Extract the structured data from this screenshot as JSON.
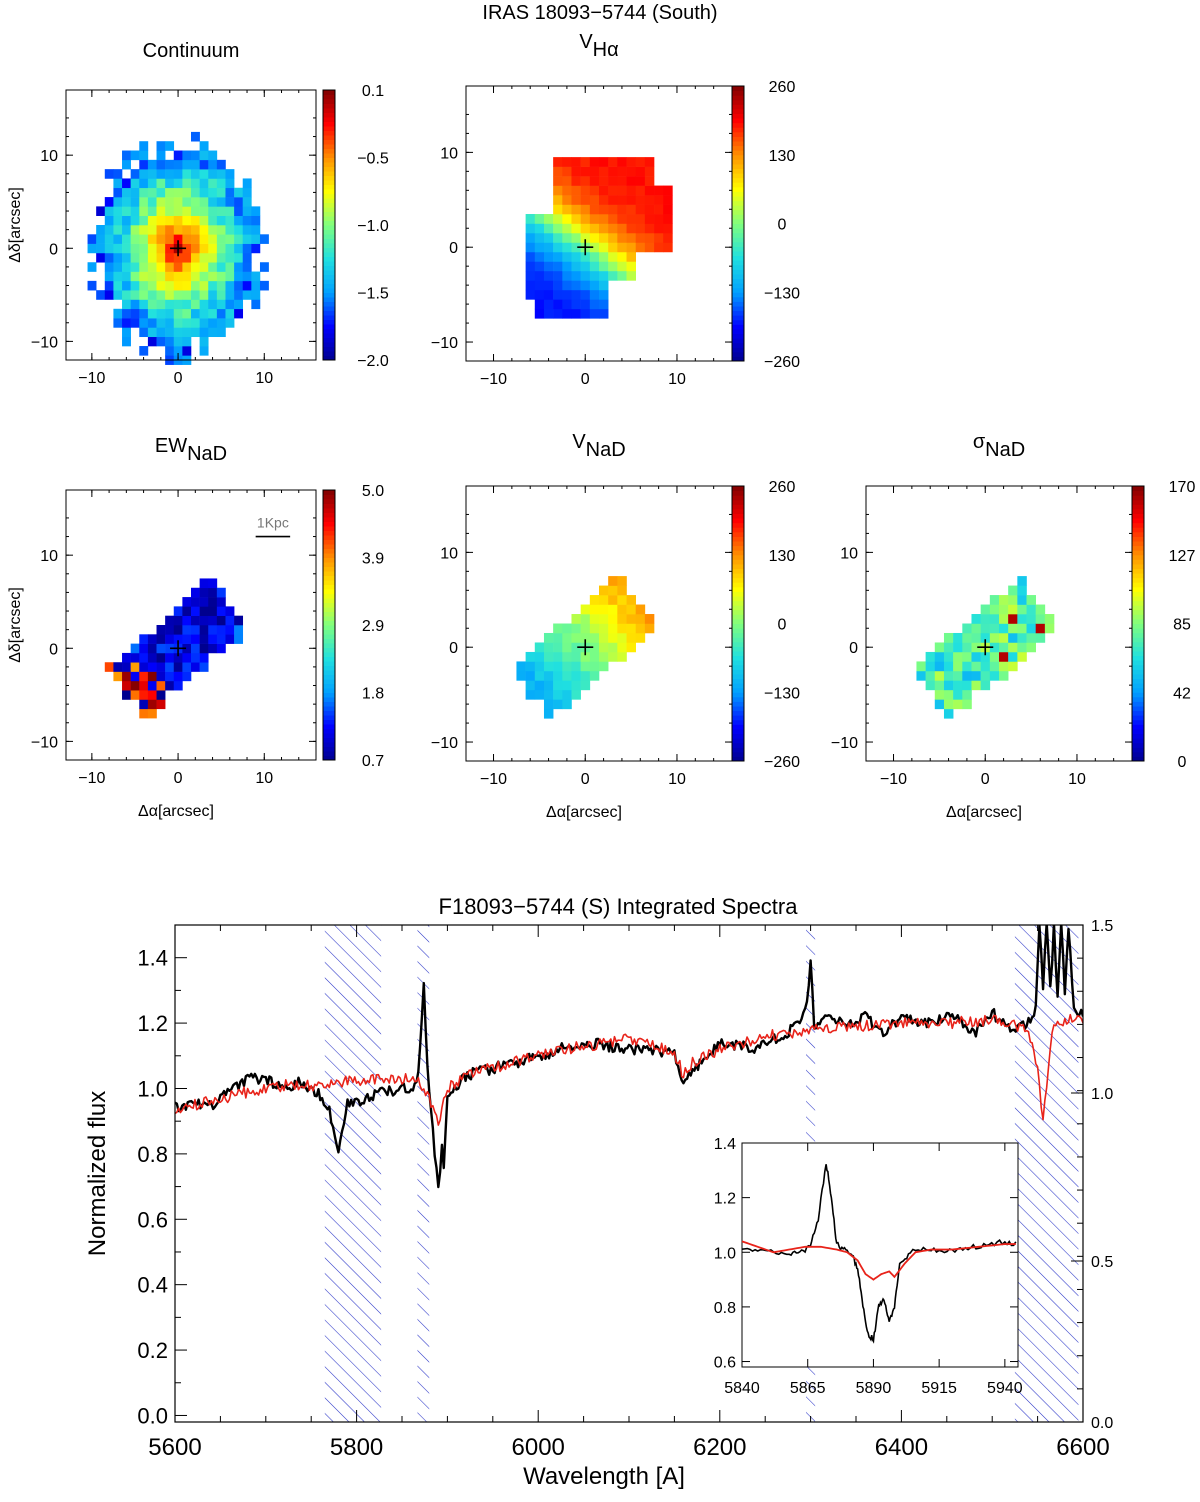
{
  "figure": {
    "title": "IRAS 18093−5744 (South)"
  },
  "colors": {
    "observed": "#000000",
    "model": "#e8231a",
    "hatch": "#2a35c8",
    "colormap": [
      "#00008f",
      "#0000ff",
      "#00a0ff",
      "#20e0e0",
      "#7fff7f",
      "#ffff00",
      "#ff9000",
      "#ff0000",
      "#800000"
    ]
  },
  "chart_data": [
    {
      "type": "heatmap",
      "id": "continuum",
      "title": "Continuum",
      "title_sub": "",
      "xlabel": "",
      "ylabel": "Δδ[arcsec]",
      "xlim": [
        -13,
        16
      ],
      "ylim": [
        -12,
        17
      ],
      "xticks": [
        -10,
        0,
        10
      ],
      "yticks": [
        -10,
        0,
        10
      ],
      "colorbar": {
        "min": -2.0,
        "max": 0.1,
        "ticks": [
          "0.1",
          "−0.5",
          "−1.0",
          "−1.5",
          "−2.0"
        ]
      },
      "map": {
        "shape": "blob",
        "center": [
          0,
          0
        ],
        "radius": [
          10,
          11.5
        ],
        "peak": 0.1,
        "low": -2.0,
        "noise": 0.35
      },
      "nucleus": [
        0,
        0
      ]
    },
    {
      "type": "heatmap",
      "id": "v-halpha",
      "title": "V",
      "title_sub": "Hα",
      "xlabel": "",
      "ylabel": "",
      "xlim": [
        -13,
        16
      ],
      "ylim": [
        -12,
        17
      ],
      "xticks": [
        -10,
        0,
        10
      ],
      "yticks": [
        -10,
        0,
        10
      ],
      "colorbar": {
        "min": -260,
        "max": 260,
        "ticks": [
          "260",
          "130",
          "0",
          "−130",
          "−260"
        ]
      },
      "map": {
        "shape": "velocity",
        "extent": [
          -6,
          9,
          -7,
          9
        ],
        "angle": 35,
        "vmax": 190
      },
      "nucleus": [
        0,
        0
      ]
    },
    {
      "type": "heatmap",
      "id": "ew-nad",
      "title": "EW",
      "title_sub": "NaD",
      "xlabel": "Δα[arcsec]",
      "ylabel": "Δδ[arcsec]",
      "xlim": [
        -13,
        16
      ],
      "ylim": [
        -12,
        17
      ],
      "xticks": [
        -10,
        0,
        10
      ],
      "yticks": [
        -10,
        0,
        10
      ],
      "colorbar": {
        "min": 0.7,
        "max": 5.0,
        "ticks": [
          "5.0",
          "3.9",
          "2.9",
          "1.8",
          "0.7"
        ]
      },
      "map": {
        "shape": "strip",
        "angle": 40,
        "length": 8,
        "width": 3.2,
        "peak": 1.6,
        "low": 0.7,
        "noise": 0.5
      },
      "scalebar": "1Kpc",
      "nucleus": [
        0,
        0
      ]
    },
    {
      "type": "heatmap",
      "id": "v-nad",
      "title": "V",
      "title_sub": "NaD",
      "xlabel": "Δα[arcsec]",
      "ylabel": "",
      "xlim": [
        -13,
        16
      ],
      "ylim": [
        -12,
        17
      ],
      "xticks": [
        -10,
        0,
        10
      ],
      "yticks": [
        -10,
        0,
        10
      ],
      "colorbar": {
        "min": -260,
        "max": 260,
        "ticks": [
          "260",
          "130",
          "0",
          "−130",
          "−260"
        ]
      },
      "map": {
        "shape": "strip-velocity",
        "angle": 40,
        "length": 8,
        "width": 3.2,
        "vmax": 130
      },
      "nucleus": [
        0,
        0
      ]
    },
    {
      "type": "heatmap",
      "id": "sigma-nad",
      "title": "σ",
      "title_sub": "NaD",
      "xlabel": "Δα[arcsec]",
      "ylabel": "",
      "xlim": [
        -13,
        16
      ],
      "ylim": [
        -12,
        17
      ],
      "xticks": [
        -10,
        0,
        10
      ],
      "yticks": [
        -10,
        0,
        10
      ],
      "colorbar": {
        "min": 0,
        "max": 170,
        "ticks": [
          "170",
          "127",
          "85",
          "42",
          "0"
        ]
      },
      "map": {
        "shape": "strip",
        "angle": 40,
        "length": 8,
        "width": 3.2,
        "peak": 95,
        "low": 55,
        "noise": 30
      },
      "nucleus": [
        0,
        0
      ]
    },
    {
      "type": "line",
      "id": "integrated-spectra",
      "title": "F18093−5744 (S) Integrated Spectra",
      "xlabel": "Wavelength [A]",
      "ylabel": "Normalized flux",
      "xlim": [
        5600,
        6600
      ],
      "ylim": [
        -0.02,
        1.5
      ],
      "xticks": [
        5600,
        5800,
        6000,
        6200,
        6400,
        6600
      ],
      "yticks": [
        0.0,
        0.2,
        0.4,
        0.6,
        0.8,
        1.0,
        1.2,
        1.4
      ],
      "right_ticks": [
        "1.5",
        "1.0",
        "0.5",
        "0.0"
      ],
      "masked_regions": [
        [
          5765,
          5827
        ],
        [
          5867,
          5880
        ],
        [
          6295,
          6305
        ],
        [
          6525,
          6595
        ]
      ],
      "series": [
        {
          "role": "observed",
          "x": [
            5600,
            5620,
            5640,
            5660,
            5680,
            5700,
            5720,
            5740,
            5760,
            5770,
            5780,
            5790,
            5800,
            5830,
            5850,
            5866,
            5870,
            5874,
            5878,
            5882,
            5886,
            5890,
            5894,
            5896,
            5900,
            5920,
            5950,
            6000,
            6050,
            6080,
            6100,
            6130,
            6150,
            6160,
            6170,
            6190,
            6200,
            6240,
            6280,
            6296,
            6300,
            6304,
            6320,
            6340,
            6360,
            6380,
            6400,
            6420,
            6440,
            6460,
            6480,
            6500,
            6520,
            6540,
            6548,
            6552,
            6556,
            6560,
            6564,
            6568,
            6572,
            6576,
            6580,
            6584,
            6590,
            6600
          ],
          "y": [
            0.94,
            0.96,
            0.95,
            0.99,
            1.03,
            1.03,
            1.0,
            1.02,
            0.98,
            0.93,
            0.8,
            0.95,
            0.96,
            0.99,
            1.0,
            1.01,
            1.12,
            1.33,
            1.06,
            0.95,
            0.8,
            0.69,
            0.82,
            0.75,
            0.98,
            1.04,
            1.06,
            1.1,
            1.14,
            1.13,
            1.12,
            1.12,
            1.1,
            1.01,
            1.06,
            1.1,
            1.14,
            1.12,
            1.18,
            1.25,
            1.4,
            1.18,
            1.22,
            1.2,
            1.22,
            1.17,
            1.22,
            1.2,
            1.21,
            1.22,
            1.17,
            1.23,
            1.18,
            1.2,
            1.25,
            1.5,
            1.3,
            1.5,
            1.3,
            1.5,
            1.28,
            1.5,
            1.3,
            1.5,
            1.25,
            1.22
          ]
        },
        {
          "role": "model",
          "x": [
            5600,
            5640,
            5680,
            5720,
            5760,
            5780,
            5800,
            5830,
            5860,
            5870,
            5880,
            5886,
            5890,
            5894,
            5900,
            5920,
            5960,
            6000,
            6050,
            6100,
            6150,
            6160,
            6170,
            6200,
            6250,
            6300,
            6350,
            6400,
            6450,
            6500,
            6520,
            6540,
            6550,
            6556,
            6562,
            6566,
            6572,
            6580,
            6590,
            6600
          ],
          "y": [
            0.94,
            0.96,
            0.99,
            1.01,
            1.01,
            1.02,
            1.02,
            1.03,
            1.03,
            1.02,
            0.97,
            0.92,
            0.9,
            0.94,
            1.0,
            1.04,
            1.07,
            1.1,
            1.13,
            1.15,
            1.11,
            1.04,
            1.08,
            1.12,
            1.16,
            1.18,
            1.19,
            1.2,
            1.2,
            1.21,
            1.2,
            1.18,
            1.05,
            0.91,
            1.05,
            1.18,
            1.2,
            1.2,
            1.22,
            1.2
          ]
        }
      ],
      "inset": {
        "xlim": [
          5840,
          5945
        ],
        "ylim": [
          0.58,
          1.4
        ],
        "xticks": [
          5840,
          5865,
          5890,
          5915,
          5940
        ],
        "yticks": [
          0.6,
          0.8,
          1.0,
          1.2,
          1.4
        ],
        "series": [
          {
            "role": "observed",
            "x": [
              5840,
              5846,
              5852,
              5858,
              5862,
              5866,
              5869,
              5872,
              5874,
              5876,
              5879,
              5882,
              5884,
              5886,
              5888,
              5890,
              5892,
              5894,
              5896,
              5898,
              5900,
              5904,
              5910,
              5916,
              5922,
              5928,
              5934,
              5940,
              5945
            ],
            "y": [
              1.02,
              1.01,
              1.0,
              0.99,
              1.0,
              1.02,
              1.12,
              1.33,
              1.2,
              1.03,
              1.01,
              0.99,
              0.94,
              0.8,
              0.7,
              0.68,
              0.8,
              0.83,
              0.74,
              0.8,
              0.95,
              1.0,
              1.01,
              1.0,
              1.01,
              1.02,
              1.03,
              1.04,
              1.03
            ]
          },
          {
            "role": "model",
            "x": [
              5840,
              5846,
              5852,
              5858,
              5864,
              5870,
              5876,
              5880,
              5884,
              5887,
              5890,
              5893,
              5896,
              5898,
              5902,
              5906,
              5912,
              5920,
              5930,
              5940,
              5945
            ],
            "y": [
              1.04,
              1.02,
              1.0,
              1.01,
              1.02,
              1.02,
              1.01,
              1.0,
              0.97,
              0.92,
              0.9,
              0.92,
              0.93,
              0.91,
              0.96,
              1.0,
              1.01,
              1.01,
              1.02,
              1.03,
              1.03
            ]
          }
        ]
      }
    }
  ]
}
